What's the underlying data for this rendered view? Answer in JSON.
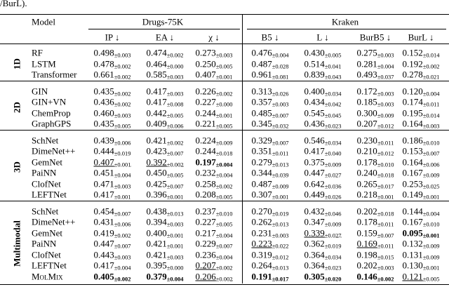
{
  "caption_fragment": "/BurL).",
  "table": {
    "header": {
      "model": "Model",
      "groups": [
        "Drugs-75K",
        "Kraken"
      ],
      "columns": [
        "IP ↓",
        "EA ↓",
        "χ ↓",
        "B5 ↓",
        "L ↓",
        "BurB5 ↓",
        "BurL ↓"
      ]
    },
    "sections": [
      {
        "label": "1D",
        "rows": [
          {
            "model": "RF",
            "cells": [
              {
                "v": "0.498",
                "s": "±0.003"
              },
              {
                "v": "0.474",
                "s": "±0.002"
              },
              {
                "v": "0.273",
                "s": "±0.003"
              },
              {
                "v": "0.476",
                "s": "±0.004"
              },
              {
                "v": "0.430",
                "s": "±0.005"
              },
              {
                "v": "0.275",
                "s": "±0.003"
              },
              {
                "v": "0.152",
                "s": "±0.014"
              }
            ]
          },
          {
            "model": "LSTM",
            "cells": [
              {
                "v": "0.478",
                "s": "±0.002"
              },
              {
                "v": "0.464",
                "s": "±0.000"
              },
              {
                "v": "0.250",
                "s": "±0.005"
              },
              {
                "v": "0.487",
                "s": "±0.028"
              },
              {
                "v": "0.514",
                "s": "±0.041"
              },
              {
                "v": "0.281",
                "s": "±0.004"
              },
              {
                "v": "0.192",
                "s": "±0.002"
              }
            ]
          },
          {
            "model": "Transformer",
            "cells": [
              {
                "v": "0.661",
                "s": "±0.002"
              },
              {
                "v": "0.585",
                "s": "±0.003"
              },
              {
                "v": "0.407",
                "s": "±0.001"
              },
              {
                "v": "0.961",
                "s": "±0.081"
              },
              {
                "v": "0.839",
                "s": "±0.043"
              },
              {
                "v": "0.493",
                "s": "±0.037"
              },
              {
                "v": "0.278",
                "s": "±0.021"
              }
            ]
          }
        ]
      },
      {
        "label": "2D",
        "rows": [
          {
            "model": "GIN",
            "cells": [
              {
                "v": "0.435",
                "s": "±0.002"
              },
              {
                "v": "0.417",
                "s": "±0.003"
              },
              {
                "v": "0.226",
                "s": "±0.002"
              },
              {
                "v": "0.313",
                "s": "±0.026"
              },
              {
                "v": "0.400",
                "s": "±0.034"
              },
              {
                "v": "0.172",
                "s": "±0.003"
              },
              {
                "v": "0.120",
                "s": "±0.004"
              }
            ]
          },
          {
            "model": "GIN+VN",
            "cells": [
              {
                "v": "0.436",
                "s": "±0.002"
              },
              {
                "v": "0.417",
                "s": "±0.008"
              },
              {
                "v": "0.227",
                "s": "±0.000"
              },
              {
                "v": "0.357",
                "s": "±0.003"
              },
              {
                "v": "0.434",
                "s": "±0.042"
              },
              {
                "v": "0.185",
                "s": "±0.003"
              },
              {
                "v": "0.174",
                "s": "±0.011"
              }
            ]
          },
          {
            "model": "ChemProp",
            "cells": [
              {
                "v": "0.460",
                "s": "±0.003"
              },
              {
                "v": "0.442",
                "s": "±0.005"
              },
              {
                "v": "0.244",
                "s": "±0.001"
              },
              {
                "v": "0.485",
                "s": "±0.007"
              },
              {
                "v": "0.545",
                "s": "±0.045"
              },
              {
                "v": "0.300",
                "s": "±0.009"
              },
              {
                "v": "0.195",
                "s": "±0.014"
              }
            ]
          },
          {
            "model": "GraphGPS",
            "cells": [
              {
                "v": "0.435",
                "s": "±0.005"
              },
              {
                "v": "0.409",
                "s": "±0.006"
              },
              {
                "v": "0.221",
                "s": "±0.005"
              },
              {
                "v": "0.345",
                "s": "±0.032"
              },
              {
                "v": "0.436",
                "s": "±0.023"
              },
              {
                "v": "0.207",
                "s": "±0.012"
              },
              {
                "v": "0.164",
                "s": "±0.003"
              }
            ]
          }
        ]
      },
      {
        "label": "3D",
        "rows": [
          {
            "model": "SchNet",
            "cells": [
              {
                "v": "0.439",
                "s": "±0.006"
              },
              {
                "v": "0.421",
                "s": "±0.002"
              },
              {
                "v": "0.224",
                "s": "±0.009"
              },
              {
                "v": "0.329",
                "s": "±0.007"
              },
              {
                "v": "0.546",
                "s": "±0.034"
              },
              {
                "v": "0.230",
                "s": "±0.011"
              },
              {
                "v": "0.186",
                "s": "±0.010"
              }
            ]
          },
          {
            "model": "DimeNet++",
            "cells": [
              {
                "v": "0.444",
                "s": "±0.019"
              },
              {
                "v": "0.423",
                "s": "±0.007"
              },
              {
                "v": "0.244",
                "s": "±0.018"
              },
              {
                "v": "0.351",
                "s": "±0.011"
              },
              {
                "v": "0.417",
                "s": "±0.040"
              },
              {
                "v": "0.210",
                "s": "±0.012"
              },
              {
                "v": "0.153",
                "s": "±0.007"
              }
            ]
          },
          {
            "model": "GemNet",
            "cells": [
              {
                "v": "0.407",
                "s": "±0.001",
                "fmt": "underline"
              },
              {
                "v": "0.392",
                "s": "±0.002",
                "fmt": "underline"
              },
              {
                "v": "0.197",
                "s": "±0.004",
                "fmt": "bold"
              },
              {
                "v": "0.279",
                "s": "±0.013"
              },
              {
                "v": "0.375",
                "s": "±0.009"
              },
              {
                "v": "0.178",
                "s": "±0.010"
              },
              {
                "v": "0.164",
                "s": "±0.006"
              }
            ]
          },
          {
            "model": "PaiNN",
            "cells": [
              {
                "v": "0.451",
                "s": "±0.004"
              },
              {
                "v": "0.450",
                "s": "±0.005"
              },
              {
                "v": "0.232",
                "s": "±0.004"
              },
              {
                "v": "0.344",
                "s": "±0.039"
              },
              {
                "v": "0.447",
                "s": "±0.027"
              },
              {
                "v": "0.240",
                "s": "±0.018"
              },
              {
                "v": "0.167",
                "s": "±0.009"
              }
            ]
          },
          {
            "model": "ClofNet",
            "cells": [
              {
                "v": "0.471",
                "s": "±0.003"
              },
              {
                "v": "0.425",
                "s": "±0.007"
              },
              {
                "v": "0.258",
                "s": "±0.002"
              },
              {
                "v": "0.487",
                "s": "±0.009"
              },
              {
                "v": "0.642",
                "s": "±0.036"
              },
              {
                "v": "0.265",
                "s": "±0.017"
              },
              {
                "v": "0.253",
                "s": "±0.025"
              }
            ]
          },
          {
            "model": "LEFTNet",
            "cells": [
              {
                "v": "0.417",
                "s": "±0.001"
              },
              {
                "v": "0.396",
                "s": "±0.001"
              },
              {
                "v": "0.208",
                "s": "±0.005"
              },
              {
                "v": "0.307",
                "s": "±0.001"
              },
              {
                "v": "0.449",
                "s": "±0.026"
              },
              {
                "v": "0.218",
                "s": "±0.001"
              },
              {
                "v": "0.149",
                "s": "±0.001"
              }
            ]
          }
        ]
      },
      {
        "label": "Multimodal",
        "rows": [
          {
            "model": "SchNet",
            "cells": [
              {
                "v": "0.454",
                "s": "±0.007"
              },
              {
                "v": "0.438",
                "s": "±0.013"
              },
              {
                "v": "0.237",
                "s": "±0.010"
              },
              {
                "v": "0.270",
                "s": "±0.019"
              },
              {
                "v": "0.432",
                "s": "±0.046"
              },
              {
                "v": "0.202",
                "s": "±0.018"
              },
              {
                "v": "0.144",
                "s": "±0.004"
              }
            ]
          },
          {
            "model": "DimeNet++",
            "cells": [
              {
                "v": "0.431",
                "s": "±0.006"
              },
              {
                "v": "0.394",
                "s": "±0.003"
              },
              {
                "v": "0.227",
                "s": "±0.005"
              },
              {
                "v": "0.262",
                "s": "±0.013"
              },
              {
                "v": "0.347",
                "s": "±0.009"
              },
              {
                "v": "0.178",
                "s": "±0.011"
              },
              {
                "v": "0.167",
                "s": "±0.010"
              }
            ]
          },
          {
            "model": "GemNet",
            "cells": [
              {
                "v": "0.419",
                "s": "±0.002"
              },
              {
                "v": "0.400",
                "s": "±0.001"
              },
              {
                "v": "0.217",
                "s": "±0.004"
              },
              {
                "v": "0.231",
                "s": "±0.003"
              },
              {
                "v": "0.339",
                "s": "±0.027",
                "fmt": "underline"
              },
              {
                "v": "0.159",
                "s": "±0.007"
              },
              {
                "v": "0.095",
                "s": "±0.001",
                "fmt": "bold"
              }
            ]
          },
          {
            "model": "PaiNN",
            "cells": [
              {
                "v": "0.447",
                "s": "±0.007"
              },
              {
                "v": "0.421",
                "s": "±0.001"
              },
              {
                "v": "0.229",
                "s": "±0.007"
              },
              {
                "v": "0.223",
                "s": "±0.022",
                "fmt": "underline"
              },
              {
                "v": "0.362",
                "s": "±0.019"
              },
              {
                "v": "0.169",
                "s": "±0.011",
                "fmt": "underline"
              },
              {
                "v": "0.132",
                "s": "±0.009"
              }
            ]
          },
          {
            "model": "ClofNet",
            "cells": [
              {
                "v": "0.443",
                "s": "±0.003"
              },
              {
                "v": "0.421",
                "s": "±0.003"
              },
              {
                "v": "0.236",
                "s": "±0.004"
              },
              {
                "v": "0.319",
                "s": "±0.012"
              },
              {
                "v": "0.364",
                "s": "±0.034"
              },
              {
                "v": "0.198",
                "s": "±0.015"
              },
              {
                "v": "0.131",
                "s": "±0.009"
              }
            ]
          },
          {
            "model": "LEFTNet",
            "cells": [
              {
                "v": "0.417",
                "s": "±0.004"
              },
              {
                "v": "0.395",
                "s": "±0.000"
              },
              {
                "v": "0.207",
                "s": "±0.002",
                "fmt": "underline"
              },
              {
                "v": "0.264",
                "s": "±0.013"
              },
              {
                "v": "0.364",
                "s": "±0.023"
              },
              {
                "v": "0.202",
                "s": "±0.003"
              },
              {
                "v": "0.130",
                "s": "±0.001"
              }
            ]
          },
          {
            "model": "MolMix",
            "model_fmt": "small-caps",
            "cells": [
              {
                "v": "0.405",
                "s": "±0.002",
                "fmt": "bold"
              },
              {
                "v": "0.379",
                "s": "±0.004",
                "fmt": "bold"
              },
              {
                "v": "0.206",
                "s": "±0.002",
                "fmt": "underline"
              },
              {
                "v": "0.191",
                "s": "±0.017",
                "fmt": "bold"
              },
              {
                "v": "0.305",
                "s": "±0.020",
                "fmt": "bold"
              },
              {
                "v": "0.146",
                "s": "±0.002",
                "fmt": "bold"
              },
              {
                "v": "0.121",
                "s": "±0.005",
                "fmt": "underline"
              }
            ]
          }
        ]
      }
    ]
  }
}
